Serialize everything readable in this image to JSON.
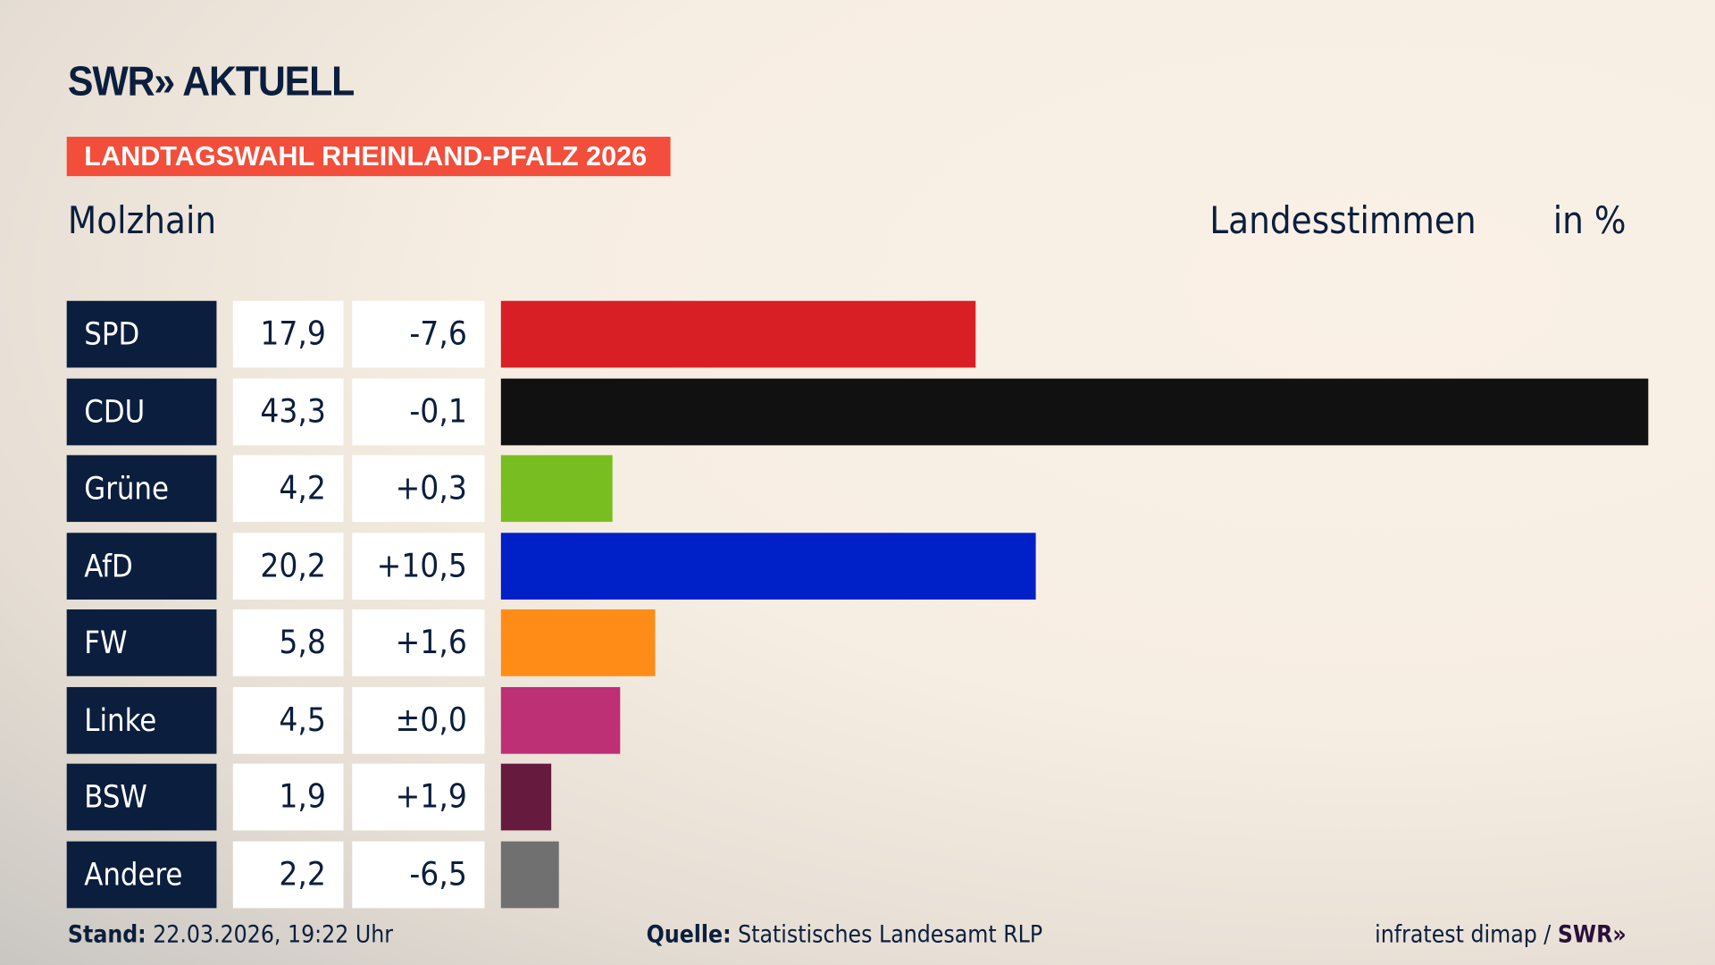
{
  "brand": {
    "logo": "SWR» AKTUELL",
    "footer_logo": "SWR»"
  },
  "header": {
    "election": "LANDTAGSWAHL RHEINLAND-PFALZ 2026",
    "place": "Molzhain",
    "vote_type": "Landesstimmen",
    "unit": "in %"
  },
  "footer": {
    "stand_label": "Stand:",
    "stand_value": "22.03.2026, 19:22 Uhr",
    "source_label": "Quelle:",
    "source_value": "Statistisches Landesamt RLP",
    "credit": "infratest dimap /"
  },
  "chart_data": {
    "type": "bar",
    "orientation": "horizontal",
    "xlim": [
      0,
      43.3
    ],
    "categories": [
      "SPD",
      "CDU",
      "Grüne",
      "AfD",
      "FW",
      "Linke",
      "BSW",
      "Andere"
    ],
    "values": [
      17.9,
      43.3,
      4.2,
      20.2,
      5.8,
      4.5,
      1.9,
      2.2
    ],
    "value_labels": [
      "17,9",
      "43,3",
      "4,2",
      "20,2",
      "5,8",
      "4,5",
      "1,9",
      "2,2"
    ],
    "diff_labels": [
      "-7,6",
      "-0,1",
      "+0,3",
      "+10,5",
      "+1,6",
      "±0,0",
      "+1,9",
      "-6,5"
    ],
    "colors": [
      "#d81f26",
      "#111111",
      "#78be20",
      "#0020c8",
      "#ff8c16",
      "#bd3075",
      "#661a3d",
      "#707070"
    ]
  }
}
